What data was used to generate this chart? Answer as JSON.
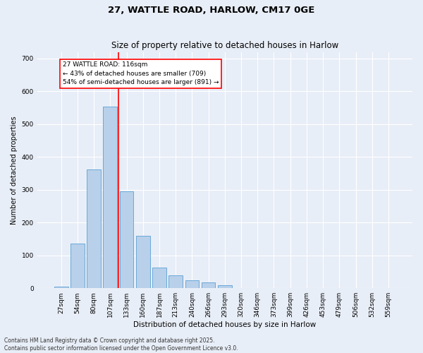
{
  "title_line1": "27, WATTLE ROAD, HARLOW, CM17 0GE",
  "title_line2": "Size of property relative to detached houses in Harlow",
  "xlabel": "Distribution of detached houses by size in Harlow",
  "ylabel": "Number of detached properties",
  "categories": [
    "27sqm",
    "54sqm",
    "80sqm",
    "107sqm",
    "133sqm",
    "160sqm",
    "187sqm",
    "213sqm",
    "240sqm",
    "266sqm",
    "293sqm",
    "320sqm",
    "346sqm",
    "373sqm",
    "399sqm",
    "426sqm",
    "453sqm",
    "479sqm",
    "506sqm",
    "532sqm",
    "559sqm"
  ],
  "values": [
    5,
    137,
    362,
    554,
    295,
    160,
    63,
    40,
    25,
    18,
    8,
    0,
    0,
    0,
    0,
    0,
    0,
    0,
    0,
    0,
    0
  ],
  "bar_color": "#b8d0ea",
  "bar_edge_color": "#7aaced6",
  "vline_x_index": 3.5,
  "vline_color": "red",
  "annotation_text": "27 WATTLE ROAD: 116sqm\n← 43% of detached houses are smaller (709)\n54% of semi-detached houses are larger (891) →",
  "annotation_box_color": "white",
  "annotation_box_edge_color": "red",
  "ylim": [
    0,
    720
  ],
  "yticks": [
    0,
    100,
    200,
    300,
    400,
    500,
    600,
    700
  ],
  "bg_color": "#e8eef7",
  "plot_bg_color": "#e8eef7",
  "footer_line1": "Contains HM Land Registry data © Crown copyright and database right 2025.",
  "footer_line2": "Contains public sector information licensed under the Open Government Licence v3.0.",
  "title_fontsize": 9.5,
  "subtitle_fontsize": 8.5,
  "tick_fontsize": 6.5,
  "annotation_fontsize": 6.5,
  "xlabel_fontsize": 7.5,
  "ylabel_fontsize": 7,
  "footer_fontsize": 5.5
}
